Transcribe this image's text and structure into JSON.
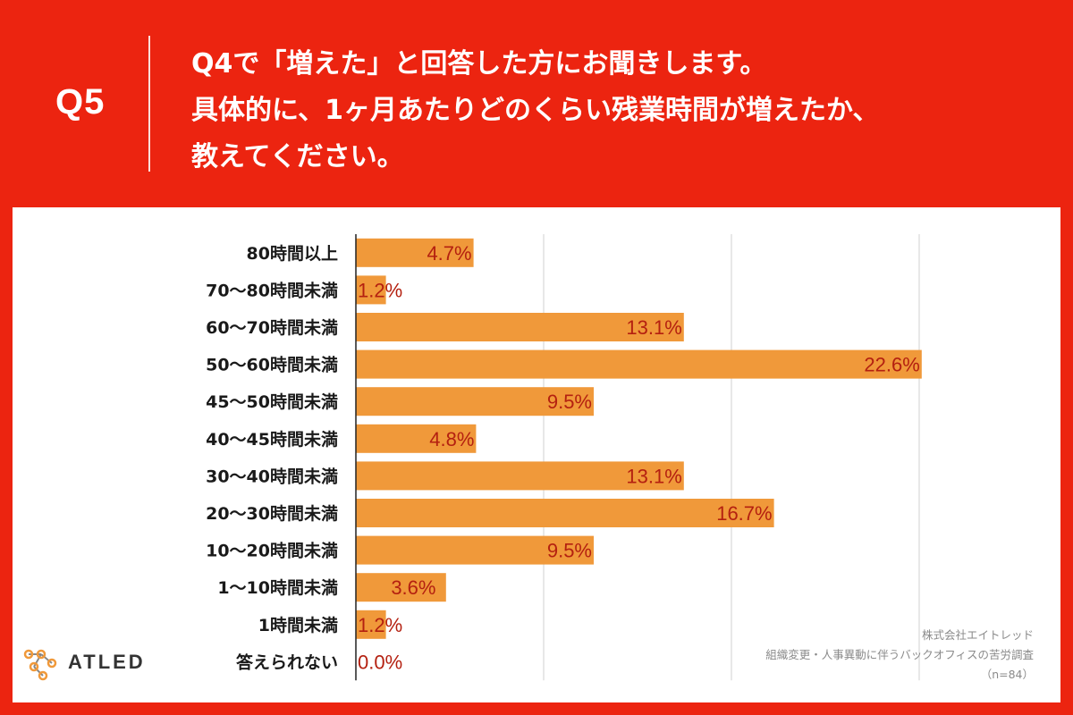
{
  "header": {
    "qnum": "Q5",
    "question_lines": [
      "Q4で「増えた」と回答した方にお聞きします。",
      "具体的に、1ヶ月あたりどのくらい残業時間が増えたか、",
      "教えてください。"
    ]
  },
  "footer": {
    "company": "株式会社エイトレッド",
    "survey": "組織変更・人事異動に伴うバックオフィスの苦労調査",
    "sample": "（n=84）"
  },
  "logo": {
    "text": "ATLED",
    "icon": "atled-molecule-logo"
  },
  "colors": {
    "background": "#ec2410",
    "bar": "#f0993a",
    "value_text": "#b42010",
    "grid": "#d0d0d0",
    "axis": "#222222"
  },
  "chart_data": {
    "type": "bar",
    "orientation": "horizontal",
    "title": "",
    "xlabel": "",
    "ylabel": "",
    "xlim": [
      0,
      25
    ],
    "grid": true,
    "categories": [
      "80時間以上",
      "70〜80時間未満",
      "60〜70時間未満",
      "50〜60時間未満",
      "45〜50時間未満",
      "40〜45時間未満",
      "30〜40時間未満",
      "20〜30時間未満",
      "10〜20時間未満",
      "1〜10時間未満",
      "1時間未満",
      "答えられない"
    ],
    "values": [
      4.7,
      1.2,
      13.1,
      22.6,
      9.5,
      4.8,
      13.1,
      16.7,
      9.5,
      3.6,
      1.2,
      0.0
    ],
    "value_labels": [
      "4.7%",
      "1.2%",
      "13.1%",
      "22.6%",
      "9.5%",
      "4.8%",
      "13.1%",
      "16.7%",
      "9.5%",
      "3.6%",
      "1.2%",
      "0.0%"
    ]
  }
}
